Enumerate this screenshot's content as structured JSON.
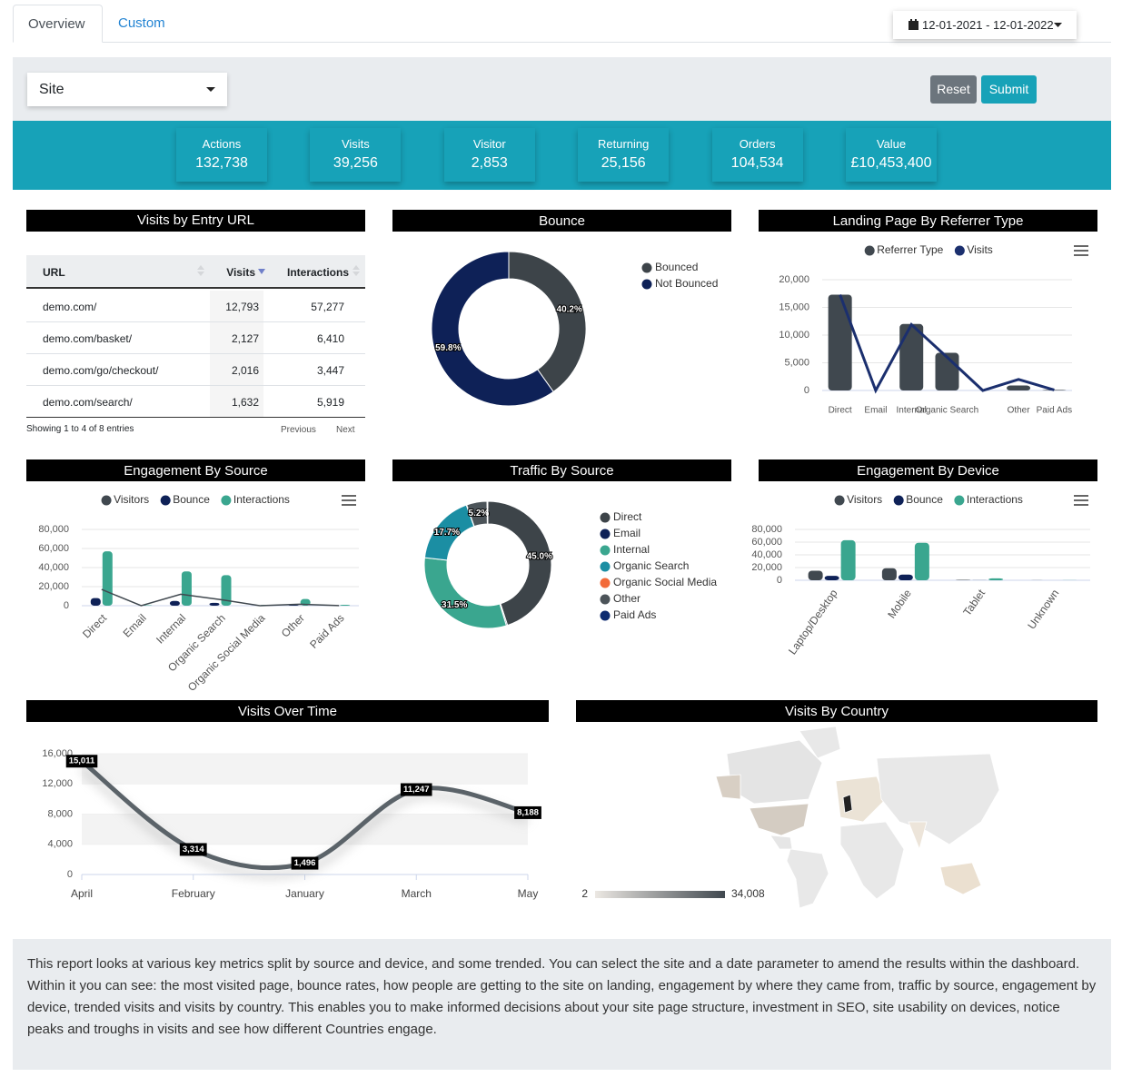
{
  "tabs": [
    "Overview",
    "Custom"
  ],
  "date_range": "12-01-2021 - 12-01-2022",
  "site_filter": "Site",
  "buttons": [
    "Reset",
    "Submit"
  ],
  "kpis": [
    {
      "label": "Actions",
      "value": "132,738"
    },
    {
      "label": "Visits",
      "value": "39,256"
    },
    {
      "label": "Visitor",
      "value": "2,853"
    },
    {
      "label": "Returning",
      "value": "25,156"
    },
    {
      "label": "Orders",
      "value": "104,534"
    },
    {
      "label": "Value",
      "value": "£10,453,400"
    }
  ],
  "entry_table": {
    "title": "Visits by Entry URL",
    "columns": [
      "URL",
      "Visits",
      "Interactions"
    ],
    "rows": [
      [
        "demo.com/",
        "12,793",
        "57,277"
      ],
      [
        "demo.com/basket/",
        "2,127",
        "6,410"
      ],
      [
        "demo.com/go/checkout/",
        "2,016",
        "3,447"
      ],
      [
        "demo.com/search/",
        "1,632",
        "5,919"
      ]
    ],
    "info": "Showing 1 to 4 of 8 entries",
    "pager": [
      "Previous",
      "Next"
    ]
  },
  "description": "This report looks at various key metrics split by source and device, and some trended. You can select the site and a date parameter to amend the results within the dashboard. Within it you can see: the most visited page, bounce rates, how people are getting to the site on landing, engagement by where they came from, traffic by source, engagement by device, trended visits and visits by country. This enables you to make informed decisions about your site page structure, investment in SEO, site usability on devices, notice peaks and troughs in visits and see how different Countries engage.",
  "chart_data": [
    {
      "type": "pie",
      "title": "Bounce",
      "donut": true,
      "legend": "right",
      "categories": [
        "Bounced",
        "Not Bounced"
      ],
      "values": [
        40.2,
        59.8
      ],
      "value_labels": [
        "40.2%",
        "59.8%"
      ],
      "colors": [
        "#3d4449",
        "#0e2157"
      ]
    },
    {
      "type": "bar",
      "title": "Landing Page By Referrer Type",
      "legend": "top",
      "grid": true,
      "categories": [
        "Direct",
        "Email",
        "Internal",
        "Organic Search",
        null,
        "Other",
        "Paid Ads"
      ],
      "series": [
        {
          "name": "Referrer Type",
          "color": "#40484f",
          "type": "bar",
          "values": [
            17300,
            0,
            12000,
            6800,
            0,
            900,
            100
          ]
        },
        {
          "name": "Visits",
          "color": "#1b2f6e",
          "type": "line",
          "values": [
            17300,
            0,
            11900,
            6000,
            0,
            2000,
            100
          ]
        }
      ],
      "ylim": [
        0,
        20000
      ],
      "yticks": [
        0,
        {
          "value": 5000,
          "label": "5,000"
        },
        {
          "value": 10000,
          "label": "10,000"
        },
        {
          "value": 15000,
          "label": "15,000"
        },
        {
          "value": 20000,
          "label": "20,000"
        }
      ]
    },
    {
      "type": "bar",
      "title": "Engagement By Source",
      "legend": "top",
      "grid": true,
      "categories": [
        "Direct",
        "Email",
        "Internal",
        "Organic Search",
        "Organic Social Media",
        "Other",
        "Paid Ads"
      ],
      "series": [
        {
          "name": "Visitors",
          "color": "#40484f",
          "type": "line",
          "values": [
            17000,
            0,
            12000,
            6500,
            0,
            1500,
            100
          ]
        },
        {
          "name": "Bounce",
          "color": "#0e2157",
          "type": "bar",
          "values": [
            8000,
            0,
            5000,
            3000,
            0,
            1000,
            200
          ]
        },
        {
          "name": "Interactions",
          "color": "#3aa68f",
          "type": "bar",
          "values": [
            57000,
            500,
            36000,
            32000,
            1000,
            7000,
            1000
          ]
        }
      ],
      "ylim": [
        0,
        80000
      ],
      "yticks": [
        0,
        {
          "value": 20000,
          "label": "20,000"
        },
        {
          "value": 40000,
          "label": "40,000"
        },
        {
          "value": 60000,
          "label": "60,000"
        },
        {
          "value": 80000,
          "label": "80,000"
        }
      ]
    },
    {
      "type": "pie",
      "title": "Traffic By Source",
      "donut": true,
      "legend": "right",
      "categories": [
        "Direct",
        "Email",
        "Internal",
        "Organic Search",
        "Organic Social Media",
        "Other",
        "Paid Ads"
      ],
      "values": [
        45.0,
        0.3,
        31.5,
        17.7,
        0.1,
        5.2,
        0.2
      ],
      "value_labels": [
        "45.0%",
        null,
        "31.5%",
        "17.7%",
        null,
        "5.2%",
        null
      ],
      "colors": [
        "#3d4449",
        "#0e2157",
        "#3aa68f",
        "#1b8ea3",
        "#f26b3a",
        "#4c5459",
        "#0d2b70"
      ]
    },
    {
      "type": "bar",
      "title": "Engagement By Device",
      "legend": "top",
      "grid": true,
      "categories": [
        "Laptop/Desktop",
        "Mobile",
        "Tablet",
        "Unknown"
      ],
      "series": [
        {
          "name": "Visitors",
          "color": "#40484f",
          "type": "bar",
          "values": [
            15000,
            19000,
            800,
            100
          ]
        },
        {
          "name": "Bounce",
          "color": "#0e2157",
          "type": "bar",
          "values": [
            7000,
            9000,
            200,
            0
          ]
        },
        {
          "name": "Interactions",
          "color": "#3aa68f",
          "type": "bar",
          "values": [
            63000,
            59000,
            3000,
            200
          ]
        }
      ],
      "ylim": [
        0,
        80000
      ],
      "yticks": [
        0,
        {
          "value": 20000,
          "label": "20,000"
        },
        {
          "value": 40000,
          "label": "40,000"
        },
        {
          "value": 60000,
          "label": "60,000"
        },
        {
          "value": 80000,
          "label": "80,000"
        }
      ]
    },
    {
      "type": "line",
      "title": "Visits Over Time",
      "color": "#5b6369",
      "categories": [
        "April",
        "February",
        "January",
        "March",
        "May"
      ],
      "values": [
        15011,
        3314,
        1496,
        11247,
        8188
      ],
      "value_labels": [
        "15,011",
        "3,314",
        "1,496",
        "11,247",
        "8,188"
      ],
      "ylim": [
        0,
        16000
      ],
      "yticks": [
        0,
        {
          "value": 4000,
          "label": "4,000"
        },
        {
          "value": 8000,
          "label": "8,000"
        },
        {
          "value": 12000,
          "label": "12,000"
        },
        {
          "value": 16000,
          "label": "16,000"
        }
      ]
    },
    {
      "type": "map",
      "title": "Visits By Country",
      "colors": [
        "#ece8e3",
        "#40484f"
      ],
      "colorbar_ticks": [
        2,
        {
          "value": 34008,
          "label": "34,008"
        }
      ]
    }
  ]
}
